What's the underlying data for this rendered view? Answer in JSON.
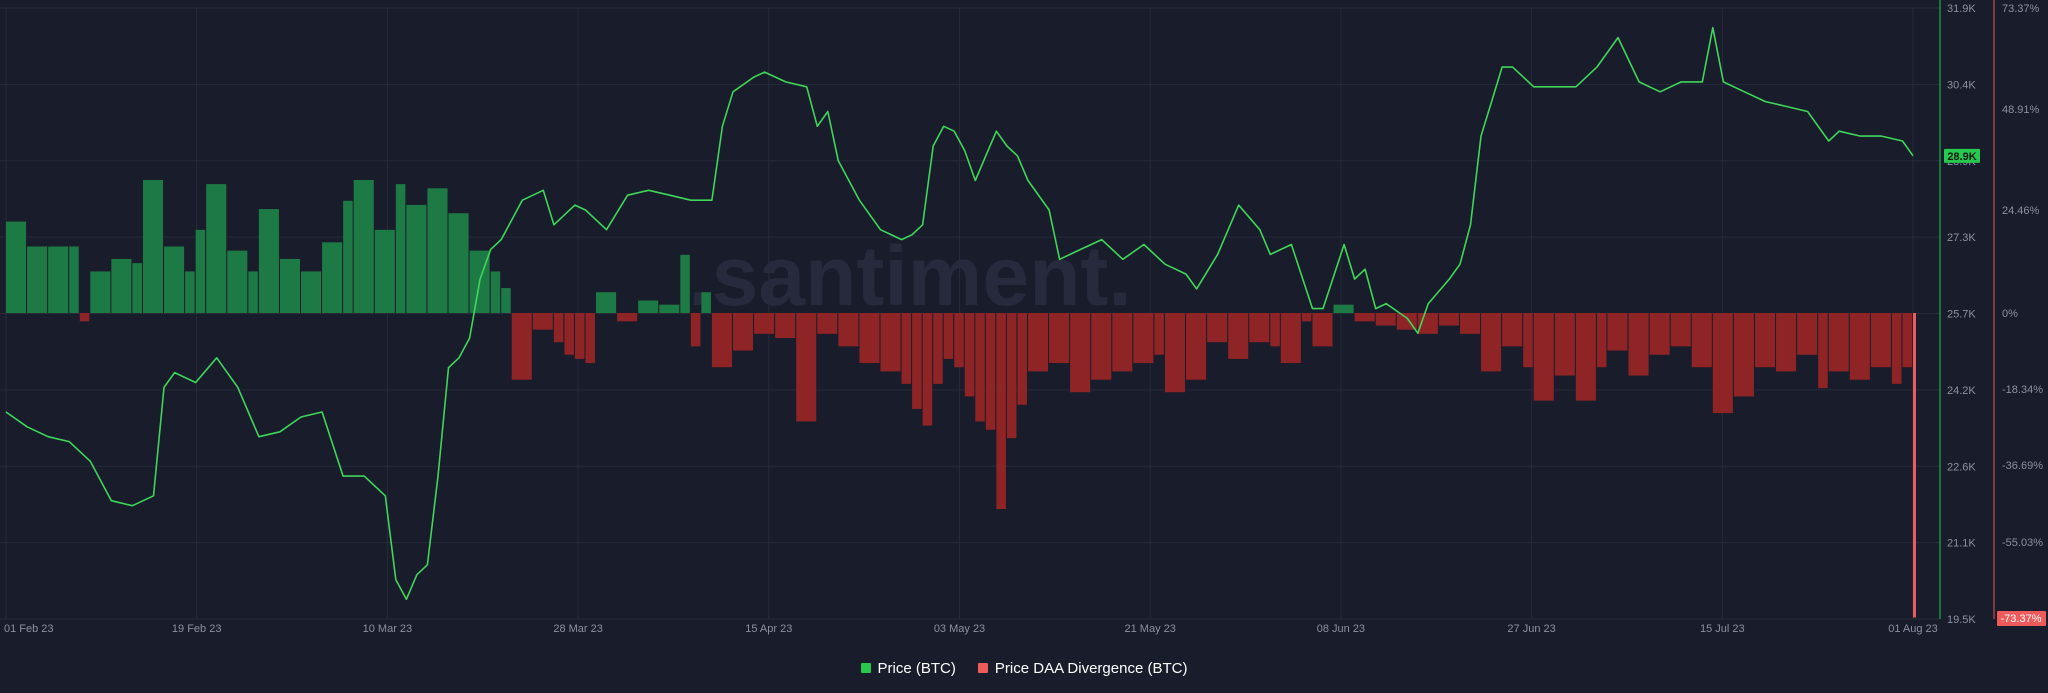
{
  "colors": {
    "background": "#191c2a",
    "grid": "#262a3b",
    "price_line": "#3fd65a",
    "bar_positive": "#1e7a44",
    "bar_negative": "#8e2426",
    "left_axis_line": "#26c84e",
    "right_axis_line": "#e65a5a",
    "watermark": "#262a3c",
    "tick_text": "#8c90a3",
    "price_badge": "#26c84e",
    "divergence_badge": "#ef5b5b"
  },
  "watermark": ".santiment.",
  "legend": [
    {
      "label": "Price (BTC)",
      "color": "#26c84e"
    },
    {
      "label": "Price DAA Divergence (BTC)",
      "color": "#ef5b5b"
    }
  ],
  "chart_data": {
    "type": "line",
    "x_axis": {
      "ticks": [
        "01 Feb 23",
        "19 Feb 23",
        "10 Mar 23",
        "28 Mar 23",
        "15 Apr 23",
        "03 May 23",
        "21 May 23",
        "08 Jun 23",
        "27 Jun 23",
        "15 Jul 23",
        "01 Aug 23"
      ],
      "range": [
        "2023-02-01",
        "2023-08-01"
      ]
    },
    "y_axis_price": {
      "ticks": [
        "31.9K",
        "30.4K",
        "28.9K",
        "27.3K",
        "25.7K",
        "24.2K",
        "22.6K",
        "21.1K",
        "19.5K"
      ],
      "range": [
        19500,
        31900
      ],
      "current_badge": "28.9K"
    },
    "y_axis_divergence": {
      "ticks": [
        "73.37%",
        "48.91%",
        "24.46%",
        "0%",
        "-18.34%",
        "-36.69%",
        "-55.03%"
      ],
      "range": [
        -73.37,
        73.37
      ],
      "current_badge": "-73.37%"
    },
    "grid": true,
    "legend_position": "bottom-center",
    "series": [
      {
        "name": "Price (BTC)",
        "type": "line",
        "axis": "left",
        "points": [
          [
            "2023-02-01",
            23700
          ],
          [
            "2023-02-03",
            23400
          ],
          [
            "2023-02-05",
            23200
          ],
          [
            "2023-02-07",
            23100
          ],
          [
            "2023-02-09",
            22700
          ],
          [
            "2023-02-11",
            21900
          ],
          [
            "2023-02-13",
            21800
          ],
          [
            "2023-02-15",
            22000
          ],
          [
            "2023-02-16",
            24200
          ],
          [
            "2023-02-17",
            24500
          ],
          [
            "2023-02-19",
            24300
          ],
          [
            "2023-02-21",
            24800
          ],
          [
            "2023-02-23",
            24200
          ],
          [
            "2023-02-25",
            23200
          ],
          [
            "2023-02-27",
            23300
          ],
          [
            "2023-03-01",
            23600
          ],
          [
            "2023-03-03",
            23700
          ],
          [
            "2023-03-05",
            22400
          ],
          [
            "2023-03-07",
            22400
          ],
          [
            "2023-03-09",
            22000
          ],
          [
            "2023-03-10",
            20300
          ],
          [
            "2023-03-11",
            19900
          ],
          [
            "2023-03-12",
            20400
          ],
          [
            "2023-03-13",
            20600
          ],
          [
            "2023-03-14",
            22400
          ],
          [
            "2023-03-15",
            24600
          ],
          [
            "2023-03-16",
            24800
          ],
          [
            "2023-03-17",
            25200
          ],
          [
            "2023-03-18",
            26400
          ],
          [
            "2023-03-19",
            27000
          ],
          [
            "2023-03-20",
            27200
          ],
          [
            "2023-03-22",
            28000
          ],
          [
            "2023-03-24",
            28200
          ],
          [
            "2023-03-25",
            27500
          ],
          [
            "2023-03-27",
            27900
          ],
          [
            "2023-03-28",
            27800
          ],
          [
            "2023-03-30",
            27400
          ],
          [
            "2023-04-01",
            28100
          ],
          [
            "2023-04-03",
            28200
          ],
          [
            "2023-04-05",
            28100
          ],
          [
            "2023-04-07",
            28000
          ],
          [
            "2023-04-09",
            28000
          ],
          [
            "2023-04-10",
            29500
          ],
          [
            "2023-04-11",
            30200
          ],
          [
            "2023-04-13",
            30500
          ],
          [
            "2023-04-14",
            30600
          ],
          [
            "2023-04-16",
            30400
          ],
          [
            "2023-04-18",
            30300
          ],
          [
            "2023-04-19",
            29500
          ],
          [
            "2023-04-20",
            29800
          ],
          [
            "2023-04-21",
            28800
          ],
          [
            "2023-04-23",
            28000
          ],
          [
            "2023-04-25",
            27400
          ],
          [
            "2023-04-27",
            27200
          ],
          [
            "2023-04-28",
            27300
          ],
          [
            "2023-04-29",
            27500
          ],
          [
            "2023-04-30",
            29100
          ],
          [
            "2023-05-01",
            29500
          ],
          [
            "2023-05-02",
            29400
          ],
          [
            "2023-05-03",
            29000
          ],
          [
            "2023-05-04",
            28400
          ],
          [
            "2023-05-05",
            28900
          ],
          [
            "2023-05-06",
            29400
          ],
          [
            "2023-05-07",
            29100
          ],
          [
            "2023-05-08",
            28900
          ],
          [
            "2023-05-09",
            28400
          ],
          [
            "2023-05-11",
            27800
          ],
          [
            "2023-05-12",
            26800
          ],
          [
            "2023-05-14",
            27000
          ],
          [
            "2023-05-16",
            27200
          ],
          [
            "2023-05-18",
            26800
          ],
          [
            "2023-05-20",
            27100
          ],
          [
            "2023-05-22",
            26700
          ],
          [
            "2023-05-24",
            26500
          ],
          [
            "2023-05-25",
            26200
          ],
          [
            "2023-05-27",
            26900
          ],
          [
            "2023-05-29",
            27900
          ],
          [
            "2023-05-31",
            27400
          ],
          [
            "2023-06-01",
            26900
          ],
          [
            "2023-06-03",
            27100
          ],
          [
            "2023-06-05",
            25800
          ],
          [
            "2023-06-06",
            25800
          ],
          [
            "2023-06-08",
            27100
          ],
          [
            "2023-06-09",
            26400
          ],
          [
            "2023-06-10",
            26600
          ],
          [
            "2023-06-11",
            25800
          ],
          [
            "2023-06-12",
            25900
          ],
          [
            "2023-06-14",
            25600
          ],
          [
            "2023-06-15",
            25300
          ],
          [
            "2023-06-16",
            25900
          ],
          [
            "2023-06-18",
            26400
          ],
          [
            "2023-06-19",
            26700
          ],
          [
            "2023-06-20",
            27500
          ],
          [
            "2023-06-21",
            29300
          ],
          [
            "2023-06-22",
            30000
          ],
          [
            "2023-06-23",
            30700
          ],
          [
            "2023-06-24",
            30700
          ],
          [
            "2023-06-26",
            30300
          ],
          [
            "2023-06-28",
            30300
          ],
          [
            "2023-06-30",
            30300
          ],
          [
            "2023-07-02",
            30700
          ],
          [
            "2023-07-04",
            31300
          ],
          [
            "2023-07-06",
            30400
          ],
          [
            "2023-07-08",
            30200
          ],
          [
            "2023-07-10",
            30400
          ],
          [
            "2023-07-12",
            30400
          ],
          [
            "2023-07-13",
            31500
          ],
          [
            "2023-07-14",
            30400
          ],
          [
            "2023-07-16",
            30200
          ],
          [
            "2023-07-18",
            30000
          ],
          [
            "2023-07-20",
            29900
          ],
          [
            "2023-07-22",
            29800
          ],
          [
            "2023-07-24",
            29200
          ],
          [
            "2023-07-25",
            29400
          ],
          [
            "2023-07-27",
            29300
          ],
          [
            "2023-07-29",
            29300
          ],
          [
            "2023-07-31",
            29200
          ],
          [
            "2023-08-01",
            28900
          ]
        ]
      },
      {
        "name": "Price DAA Divergence (BTC)",
        "type": "bar",
        "axis": "right",
        "unit": "%",
        "values": [
          [
            "2023-02-01",
            22
          ],
          [
            "2023-02-03",
            16
          ],
          [
            "2023-02-05",
            16
          ],
          [
            "2023-02-07",
            16
          ],
          [
            "2023-02-08",
            -2
          ],
          [
            "2023-02-09",
            10
          ],
          [
            "2023-02-11",
            13
          ],
          [
            "2023-02-13",
            12
          ],
          [
            "2023-02-14",
            32
          ],
          [
            "2023-02-16",
            16
          ],
          [
            "2023-02-18",
            10
          ],
          [
            "2023-02-19",
            20
          ],
          [
            "2023-02-20",
            31
          ],
          [
            "2023-02-22",
            15
          ],
          [
            "2023-02-24",
            10
          ],
          [
            "2023-02-25",
            25
          ],
          [
            "2023-02-27",
            13
          ],
          [
            "2023-03-01",
            10
          ],
          [
            "2023-03-03",
            17
          ],
          [
            "2023-03-05",
            27
          ],
          [
            "2023-03-06",
            32
          ],
          [
            "2023-03-08",
            20
          ],
          [
            "2023-03-10",
            31
          ],
          [
            "2023-03-11",
            26
          ],
          [
            "2023-03-13",
            30
          ],
          [
            "2023-03-15",
            24
          ],
          [
            "2023-03-17",
            15
          ],
          [
            "2023-03-19",
            10
          ],
          [
            "2023-03-20",
            6
          ],
          [
            "2023-03-21",
            -16
          ],
          [
            "2023-03-23",
            -4
          ],
          [
            "2023-03-25",
            -7
          ],
          [
            "2023-03-26",
            -10
          ],
          [
            "2023-03-27",
            -11
          ],
          [
            "2023-03-28",
            -12
          ],
          [
            "2023-03-29",
            5
          ],
          [
            "2023-03-31",
            -2
          ],
          [
            "2023-04-02",
            3
          ],
          [
            "2023-04-04",
            2
          ],
          [
            "2023-04-06",
            14
          ],
          [
            "2023-04-07",
            -8
          ],
          [
            "2023-04-08",
            5
          ],
          [
            "2023-04-09",
            -13
          ],
          [
            "2023-04-11",
            -9
          ],
          [
            "2023-04-13",
            -5
          ],
          [
            "2023-04-15",
            -6
          ],
          [
            "2023-04-17",
            -26
          ],
          [
            "2023-04-19",
            -5
          ],
          [
            "2023-04-21",
            -8
          ],
          [
            "2023-04-23",
            -12
          ],
          [
            "2023-04-25",
            -14
          ],
          [
            "2023-04-27",
            -17
          ],
          [
            "2023-04-28",
            -23
          ],
          [
            "2023-04-29",
            -27
          ],
          [
            "2023-04-30",
            -17
          ],
          [
            "2023-05-01",
            -11
          ],
          [
            "2023-05-02",
            -13
          ],
          [
            "2023-05-03",
            -20
          ],
          [
            "2023-05-04",
            -26
          ],
          [
            "2023-05-05",
            -28
          ],
          [
            "2023-05-06",
            -47
          ],
          [
            "2023-05-07",
            -30
          ],
          [
            "2023-05-08",
            -22
          ],
          [
            "2023-05-09",
            -14
          ],
          [
            "2023-05-11",
            -12
          ],
          [
            "2023-05-13",
            -19
          ],
          [
            "2023-05-15",
            -16
          ],
          [
            "2023-05-17",
            -14
          ],
          [
            "2023-05-19",
            -12
          ],
          [
            "2023-05-21",
            -10
          ],
          [
            "2023-05-22",
            -19
          ],
          [
            "2023-05-24",
            -16
          ],
          [
            "2023-05-26",
            -7
          ],
          [
            "2023-05-28",
            -11
          ],
          [
            "2023-05-30",
            -7
          ],
          [
            "2023-06-01",
            -8
          ],
          [
            "2023-06-02",
            -12
          ],
          [
            "2023-06-04",
            -2
          ],
          [
            "2023-06-05",
            -8
          ],
          [
            "2023-06-07",
            2
          ],
          [
            "2023-06-09",
            -2
          ],
          [
            "2023-06-11",
            -3
          ],
          [
            "2023-06-13",
            -4
          ],
          [
            "2023-06-15",
            -5
          ],
          [
            "2023-06-17",
            -3
          ],
          [
            "2023-06-19",
            -5
          ],
          [
            "2023-06-21",
            -14
          ],
          [
            "2023-06-23",
            -8
          ],
          [
            "2023-06-25",
            -13
          ],
          [
            "2023-06-26",
            -21
          ],
          [
            "2023-06-28",
            -15
          ],
          [
            "2023-06-30",
            -21
          ],
          [
            "2023-07-02",
            -13
          ],
          [
            "2023-07-03",
            -9
          ],
          [
            "2023-07-05",
            -15
          ],
          [
            "2023-07-07",
            -10
          ],
          [
            "2023-07-09",
            -8
          ],
          [
            "2023-07-11",
            -13
          ],
          [
            "2023-07-13",
            -24
          ],
          [
            "2023-07-15",
            -20
          ],
          [
            "2023-07-17",
            -13
          ],
          [
            "2023-07-19",
            -14
          ],
          [
            "2023-07-21",
            -10
          ],
          [
            "2023-07-23",
            -18
          ],
          [
            "2023-07-24",
            -14
          ],
          [
            "2023-07-26",
            -16
          ],
          [
            "2023-07-28",
            -13
          ],
          [
            "2023-07-30",
            -17
          ],
          [
            "2023-07-31",
            -13
          ],
          [
            "2023-08-01",
            -73
          ]
        ]
      }
    ]
  }
}
